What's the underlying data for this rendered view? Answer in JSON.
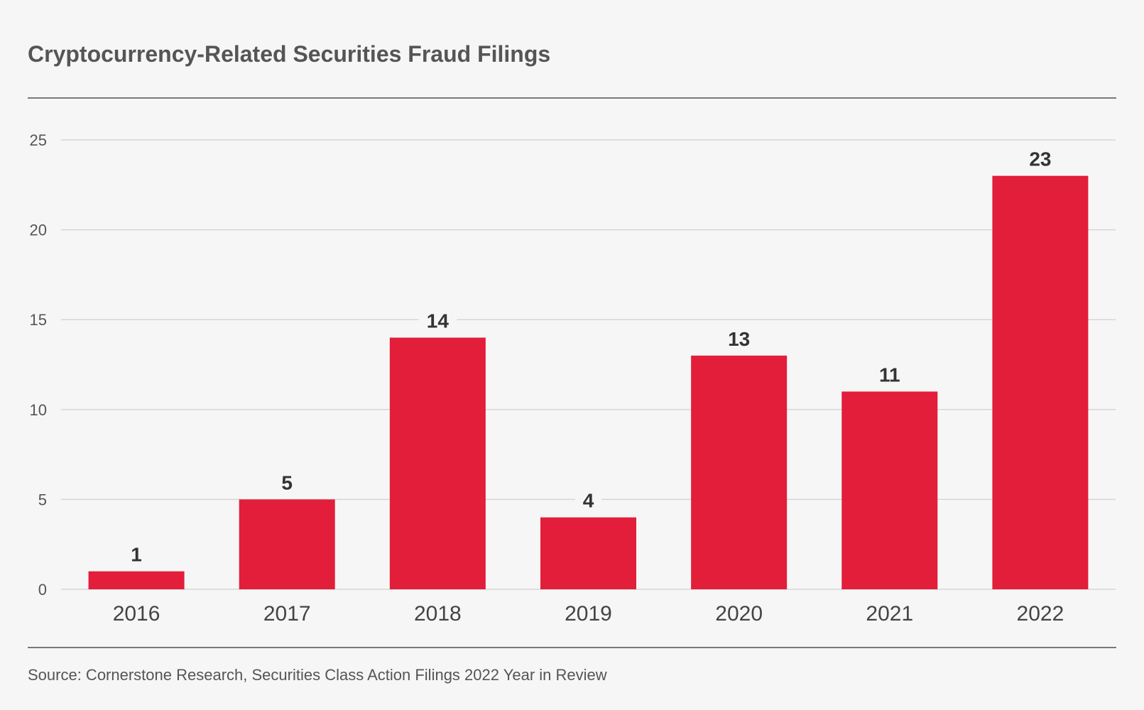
{
  "title": "Cryptocurrency-Related Securities Fraud Filings",
  "source": "Source: Cornerstone Research, Securities Class Action Filings 2022 Year in Review",
  "colors": {
    "bar": "#e21e3a",
    "grid": "#d6d6d6",
    "rule": "#7a7a7a",
    "background": "#f6f6f6"
  },
  "chart_data": {
    "type": "bar",
    "title": "Cryptocurrency-Related Securities Fraud Filings",
    "xlabel": "",
    "ylabel": "",
    "categories": [
      "2016",
      "2017",
      "2018",
      "2019",
      "2020",
      "2021",
      "2022"
    ],
    "values": [
      1,
      5,
      14,
      4,
      13,
      11,
      23
    ],
    "ylim": [
      0,
      25
    ],
    "yticks": [
      0,
      5,
      10,
      15,
      20,
      25
    ],
    "grid": true,
    "legend": "none",
    "data_labels": true
  }
}
